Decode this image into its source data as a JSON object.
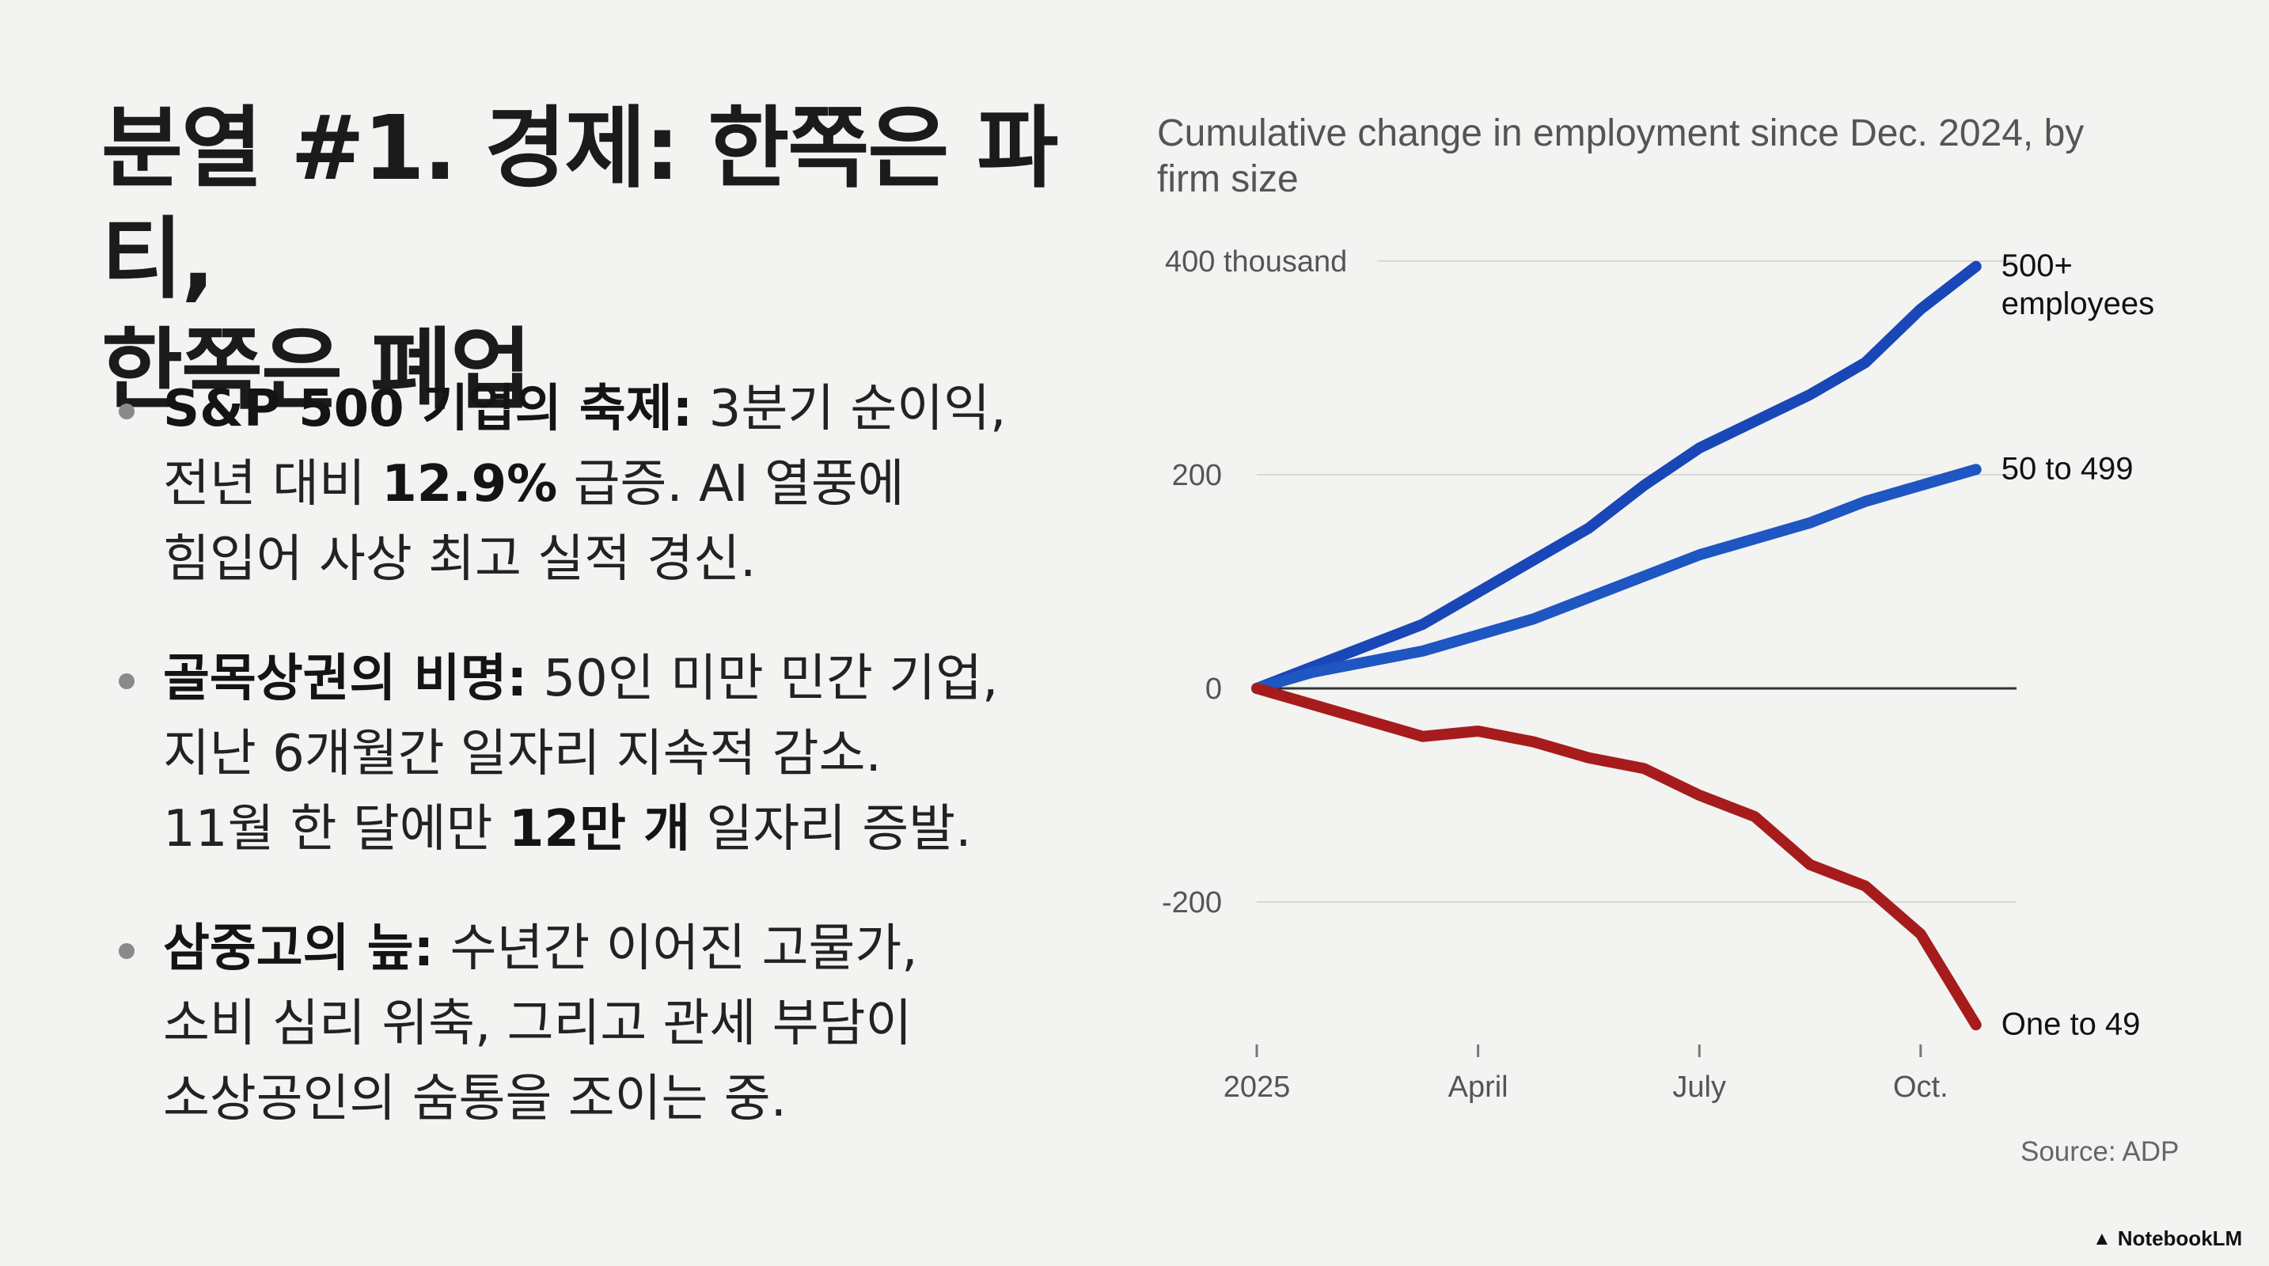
{
  "heading": {
    "line1": "분열 #1. 경제: 한쪽은 파티,",
    "line2": "한쪽은 폐업"
  },
  "bullets": [
    {
      "bold": "S&P 500 기업의 축제:",
      "line1_rest": " 3분기 순이익,",
      "line2_pre": "전년 대비 ",
      "line2_bold": "12.9%",
      "line2_post": " 급증. AI 열풍에",
      "line3": "힘입어 사상 최고 실적 경신."
    },
    {
      "bold": "골목상권의 비명:",
      "line1_rest": " 50인 미만 민간 기업,",
      "line2": "지난 6개월간 일자리 지속적 감소.",
      "line3_pre": "11월 한 달에만 ",
      "line3_bold": "12만 개",
      "line3_post": " 일자리 증발."
    },
    {
      "bold": "삼중고의 늪:",
      "line1_rest": " 수년간 이어진 고물가,",
      "line2": "소비 심리 위축, 그리고 관세 부담이",
      "line3": "소상공인의 숨통을 조이는 중."
    }
  ],
  "chart_data": {
    "type": "line",
    "title": "Cumulative change in employment since Dec. 2024, by firm size",
    "title_line1": "Cumulative change in employment since Dec. 2024, by",
    "title_line2": "firm size",
    "xlabel": "",
    "ylabel": "",
    "xlim": [
      0,
      10.3
    ],
    "ylim": [
      -340,
      400
    ],
    "y_ticks": [
      {
        "value": 400,
        "label": "400 thousand"
      },
      {
        "value": 200,
        "label": "200"
      },
      {
        "value": 0,
        "label": "0"
      },
      {
        "value": -200,
        "label": "-200"
      }
    ],
    "x_ticks": [
      {
        "value": 0,
        "label": "2025"
      },
      {
        "value": 3,
        "label": "April"
      },
      {
        "value": 6,
        "label": "July"
      },
      {
        "value": 9,
        "label": "Oct."
      }
    ],
    "x": [
      0,
      0.75,
      1.5,
      2.25,
      3,
      3.75,
      4.5,
      5.25,
      6,
      6.75,
      7.5,
      8.25,
      9,
      9.75
    ],
    "series": [
      {
        "name": "500+ employees",
        "label_lines": [
          "500+",
          "employees"
        ],
        "color": "#1a47b8",
        "values": [
          0,
          20,
          40,
          60,
          90,
          120,
          150,
          190,
          225,
          250,
          275,
          305,
          355,
          395
        ]
      },
      {
        "name": "50 to 499",
        "label_lines": [
          "50 to 499"
        ],
        "color": "#1e56c2",
        "values": [
          0,
          15,
          25,
          35,
          50,
          65,
          85,
          105,
          125,
          140,
          155,
          175,
          190,
          205
        ]
      },
      {
        "name": "One to 49",
        "label_lines": [
          "One to 49"
        ],
        "color": "#a61c1c",
        "values": [
          0,
          -15,
          -30,
          -45,
          -40,
          -50,
          -65,
          -75,
          -100,
          -120,
          -165,
          -185,
          -230,
          -315
        ]
      }
    ],
    "source": "Source: ADP"
  },
  "brand": "NotebookLM"
}
